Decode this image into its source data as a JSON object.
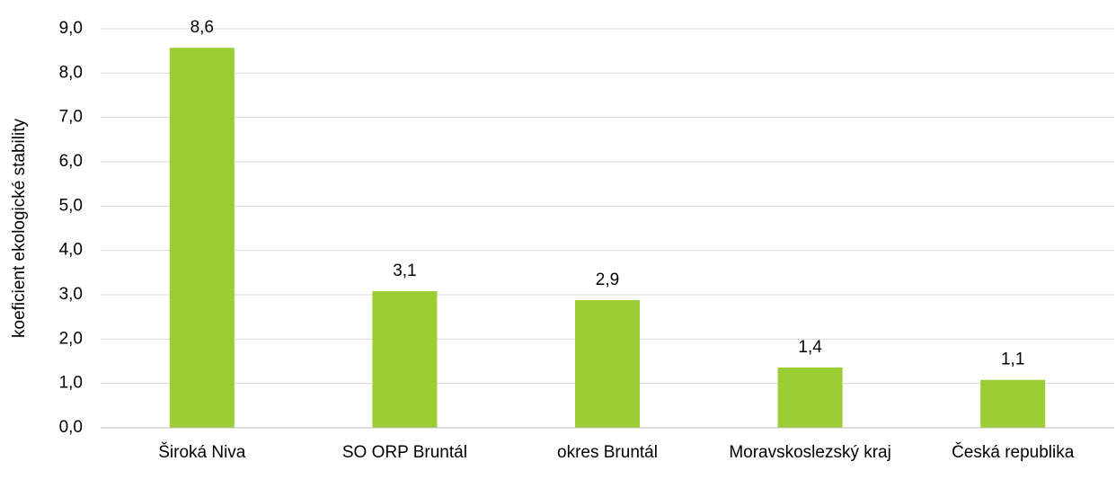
{
  "chart_data": {
    "type": "bar",
    "y_label": "koeficient ekologické stability",
    "categories": [
      "Široká Niva",
      "SO ORP Bruntál",
      "okres Bruntál",
      "Moravskoslezský kraj",
      "Česká republika"
    ],
    "values": [
      8.57,
      3.08,
      2.88,
      1.36,
      1.08
    ],
    "value_labels": [
      "8,6",
      "3,1",
      "2,9",
      "1,4",
      "1,1"
    ],
    "color": "#9acd32",
    "ylim": [
      0,
      9
    ],
    "yticks": [
      {
        "value": 0,
        "label": "0,0"
      },
      {
        "value": 1,
        "label": "1,0"
      },
      {
        "value": 2,
        "label": "2,0"
      },
      {
        "value": 3,
        "label": "3,0"
      },
      {
        "value": 4,
        "label": "4,0"
      },
      {
        "value": 5,
        "label": "5,0"
      },
      {
        "value": 6,
        "label": "6,0"
      },
      {
        "value": 7,
        "label": "7,0"
      },
      {
        "value": 8,
        "label": "8,0"
      },
      {
        "value": 9,
        "label": "9,0"
      }
    ],
    "grid": true
  }
}
